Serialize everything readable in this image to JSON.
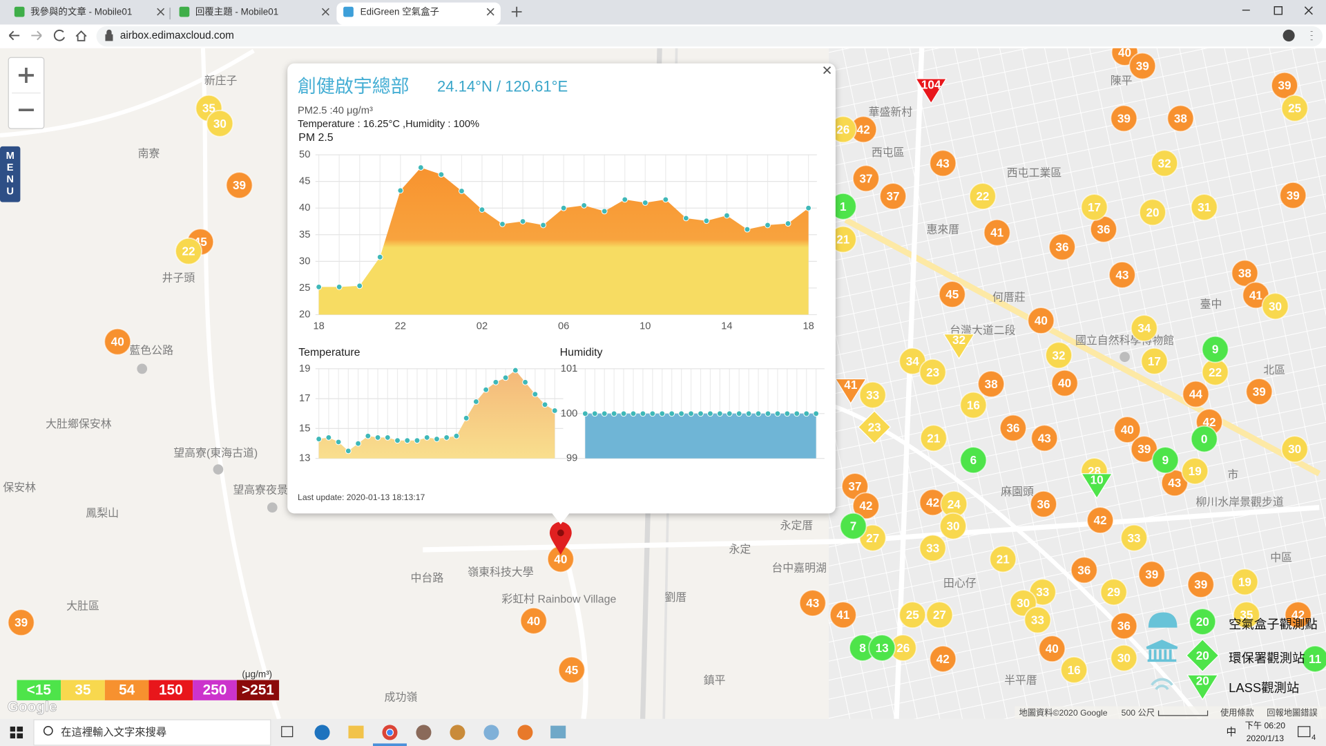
{
  "browser": {
    "tabs": [
      "我參與的文章 - Mobile01",
      "回覆主題 - Mobile01",
      "EdiGreen 空氣盒子"
    ],
    "url": "airbox.edimaxcloud.com"
  },
  "map": {
    "menu": "MENU",
    "places": [
      "新庄子",
      "南寮",
      "井子頭",
      "藍色公路",
      "大肚鄉保安林",
      "望高寮(東海古道)",
      "望高寮夜景",
      "保安林",
      "鳳梨山",
      "大肚區",
      "彩虹村 Rainbow Village",
      "嶺東科技大學",
      "成功嶺",
      "永定厝",
      "永定",
      "台中嘉明湖",
      "劉厝",
      "鎮平",
      "田心仔",
      "麻園頭",
      "西屯區",
      "西屯工業區",
      "惠來厝",
      "何厝莊",
      "台灣大道二段",
      "國立自然科學博物館",
      "臺中",
      "北區",
      "中區",
      "市",
      "柳川水岸景觀步道",
      "華盛新村",
      "陳平",
      "半平厝",
      "中台路"
    ],
    "legend": {
      "unit": "(μg/m³)",
      "levels": [
        {
          "label": "<15",
          "color": "#4ee44a",
          "stations": [
            1,
            6,
            9,
            0,
            9,
            7,
            8,
            13,
            11,
            10
          ]
        },
        {
          "label": "35",
          "color": "#f8d84e",
          "stations": [
            35,
            30,
            22,
            26,
            22,
            32,
            17,
            20,
            31,
            25,
            34,
            17,
            30,
            34,
            23,
            32,
            22,
            33,
            16,
            21,
            30,
            19,
            28,
            24,
            30,
            33,
            27,
            33,
            21,
            29,
            33,
            30,
            33,
            25,
            27,
            26,
            30,
            16,
            19,
            35,
            21,
            23,
            32
          ]
        },
        {
          "label": "54",
          "color": "#f7912f",
          "stations": [
            39,
            40,
            39,
            45,
            40,
            40,
            45,
            43,
            41,
            42,
            42,
            37,
            37,
            43,
            41,
            36,
            36,
            43,
            45,
            40,
            40,
            39,
            39,
            38,
            39,
            39,
            38,
            41,
            44,
            39,
            42,
            40,
            38,
            36,
            43,
            40,
            39,
            43,
            42,
            36,
            37,
            42,
            42,
            36,
            39,
            39,
            36,
            40,
            41,
            42
          ]
        },
        {
          "label": "150",
          "color": "#e8161b",
          "stations": [
            104
          ]
        },
        {
          "label": "250",
          "color": "#cc33cc"
        },
        {
          "label": ">251",
          "color": "#8b0a0a"
        }
      ]
    },
    "station_types": [
      {
        "name": "空氣盒子觀測點",
        "sample": 20
      },
      {
        "name": "環保署觀測站",
        "sample": 20
      },
      {
        "name": "LASS觀測站",
        "sample": 20
      }
    ],
    "google": "Google",
    "attribution": [
      "地圖資料©2020 Google",
      "500 公尺",
      "使用條款",
      "回報地圖錯誤"
    ]
  },
  "popup": {
    "title": "創健啟宇總部",
    "coords": "24.14°N / 120.61°E",
    "pm25": "PM2.5 :40 μg/m³",
    "readings": "Temperature : 16.25°C ,Humidity : 100%",
    "pm_chart": {
      "type": "area",
      "title": "PM 2.5",
      "categories": [
        "18",
        null,
        null,
        null,
        "22",
        null,
        null,
        null,
        "02",
        null,
        null,
        null,
        "06",
        null,
        null,
        null,
        "10",
        null,
        null,
        null,
        "14",
        null,
        null,
        null,
        "18"
      ],
      "values": [
        25.2,
        25.2,
        25.4,
        30.8,
        43.3,
        47.6,
        46.3,
        43.2,
        39.7,
        37.0,
        37.5,
        36.8,
        40.0,
        40.5,
        39.4,
        41.6,
        41.0,
        41.6,
        38.1,
        37.6,
        38.6,
        36.0,
        36.8,
        37.1,
        40.0
      ],
      "ylim": [
        20,
        50
      ],
      "yticks": [
        20,
        25,
        30,
        35,
        40,
        45,
        50
      ]
    },
    "temperature_chart": {
      "type": "area",
      "title": "Temperature",
      "values": [
        14.3,
        14.4,
        14.1,
        13.5,
        14.0,
        14.5,
        14.4,
        14.4,
        14.2,
        14.2,
        14.2,
        14.4,
        14.3,
        14.4,
        14.5,
        15.7,
        16.8,
        17.6,
        18.1,
        18.4,
        18.9,
        18.1,
        17.3,
        16.6,
        16.2
      ],
      "ylim": [
        13,
        19
      ],
      "yticks": [
        13,
        15,
        17,
        19
      ]
    },
    "humidity_chart": {
      "type": "area",
      "title": "Humidity",
      "values": [
        100,
        100,
        100,
        100,
        100,
        100,
        100,
        100,
        100,
        100,
        100,
        100,
        100,
        100,
        100,
        100,
        100,
        100,
        100,
        100,
        100,
        100,
        100,
        100,
        100
      ],
      "ylim": [
        99,
        101
      ],
      "yticks": [
        99,
        100,
        101
      ]
    },
    "last_update": "Last update: 2020-01-13 18:13:17"
  },
  "taskbar": {
    "search": "在這裡輸入文字來搜尋",
    "ime": "中",
    "time": "下午 06:20",
    "date": "2020/1/13",
    "notifications": 4
  }
}
